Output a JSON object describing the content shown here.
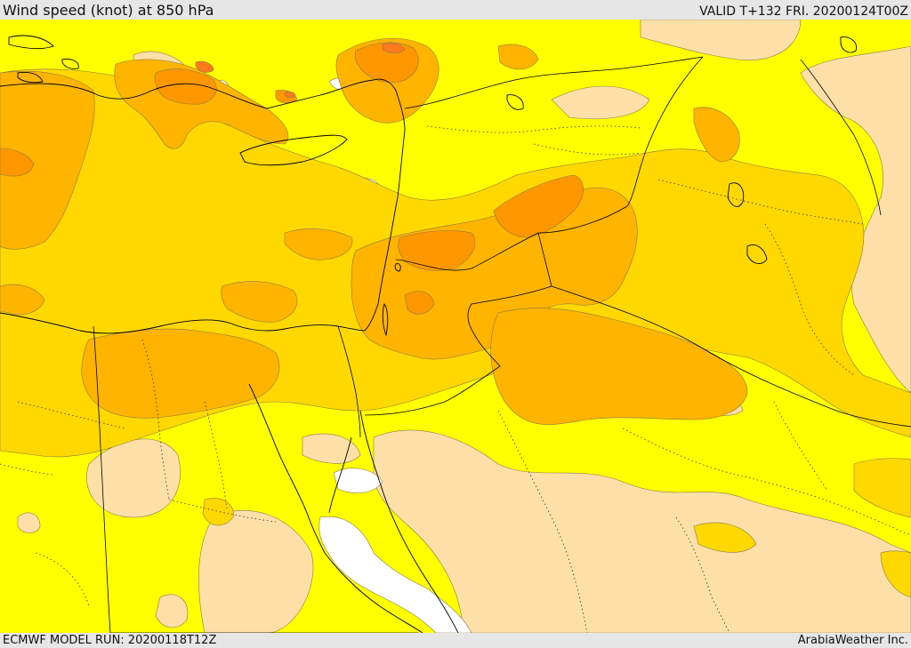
{
  "header": {
    "title": "Wind speed (knot) at 850 hPa",
    "valid": "VALID T+132 FRI. 20200124T00Z"
  },
  "footer": {
    "model_run": "ECMWF MODEL RUN: 20200118T12Z",
    "credit": "ArabiaWeather Inc."
  },
  "colors": {
    "lt_5": "#ffffff",
    "5_10": "#fde0a8",
    "10_15": "#ffff00",
    "15_20": "#ffd800",
    "20_25": "#ffb400",
    "25_30": "#ff9800",
    "30_35": "#ff7a1a",
    "coastline": "#000000",
    "border": "#000000",
    "admin_boundary": "#333333"
  },
  "icons": [
    "map"
  ]
}
